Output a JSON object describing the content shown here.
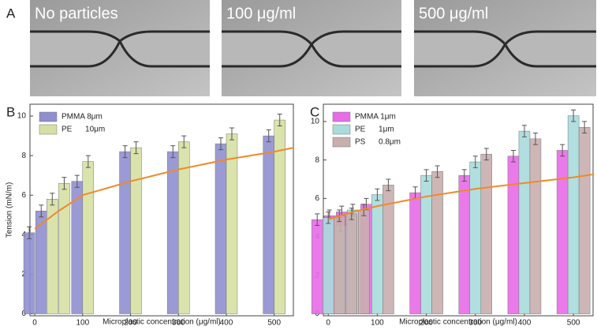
{
  "panel_labels": [
    "A",
    "B",
    "C"
  ],
  "images": [
    {
      "label": "No particles"
    },
    {
      "label": "100 μg/ml"
    },
    {
      "label": "500 μg/ml"
    }
  ],
  "chart_data": [
    {
      "type": "bar",
      "ylabel": "Tension (mN/m)",
      "xlabel": "Microplastic concentration (μg/ml)",
      "x": [
        0,
        25,
        50,
        100,
        200,
        300,
        400,
        500
      ],
      "series": [
        {
          "name": "PMMA 8μm",
          "color": "#8f8fd0",
          "values": [
            4.1,
            5.2,
            null,
            6.7,
            8.2,
            8.2,
            8.6,
            9.0
          ],
          "errors": [
            0.3,
            0.3,
            null,
            0.3,
            0.3,
            0.3,
            0.3,
            0.3
          ]
        },
        {
          "name": "PE      10μm",
          "color": "#d6e0a3",
          "values": [
            null,
            5.8,
            6.6,
            7.7,
            8.4,
            8.7,
            9.1,
            9.8
          ],
          "errors": [
            null,
            0.3,
            0.3,
            0.3,
            0.3,
            0.3,
            0.3,
            0.3
          ]
        }
      ],
      "fit": {
        "color": "#f0892a",
        "x": [
          0,
          50,
          100,
          200,
          300,
          400,
          500,
          540
        ],
        "values": [
          4.3,
          5.2,
          6.0,
          6.7,
          7.3,
          7.8,
          8.2,
          8.4
        ]
      },
      "xlim": [
        -10,
        540
      ],
      "ylim": [
        -0.1,
        10.6
      ],
      "xticks": [
        0,
        100,
        200,
        300,
        400,
        500
      ],
      "yticks": [
        0,
        2,
        4,
        6,
        8,
        10
      ]
    },
    {
      "type": "bar",
      "xlabel": "Microplastic concentration (μg/ml)",
      "x": [
        0,
        25,
        50,
        100,
        200,
        300,
        400,
        500
      ],
      "series": [
        {
          "name": "PMMA 1μm",
          "color": "#e86be8",
          "values": [
            4.9,
            5.1,
            5.3,
            5.7,
            6.3,
            7.2,
            8.2,
            8.5
          ],
          "errors": [
            0.3,
            0.3,
            0.3,
            0.3,
            0.3,
            0.3,
            0.3,
            0.3
          ]
        },
        {
          "name": "PE      1μm",
          "color": "#a9dcdc",
          "values": [
            5.0,
            4.6,
            5.4,
            6.2,
            7.2,
            7.9,
            9.5,
            10.3
          ],
          "errors": [
            0.3,
            0.3,
            0.3,
            0.3,
            0.3,
            0.3,
            0.3,
            0.3
          ]
        },
        {
          "name": "PS      0.8μm",
          "color": "#c9aeae",
          "values": [
            5.1,
            5.2,
            5.4,
            6.7,
            7.4,
            8.3,
            9.1,
            9.7
          ],
          "errors": [
            0.3,
            0.3,
            0.3,
            0.3,
            0.3,
            0.3,
            0.3,
            0.3
          ]
        }
      ],
      "fit": {
        "color": "#f0892a",
        "x": [
          0,
          50,
          100,
          200,
          300,
          400,
          500,
          540
        ],
        "values": [
          4.9,
          5.3,
          5.6,
          6.1,
          6.5,
          6.8,
          7.1,
          7.25
        ]
      },
      "xlim": [
        -10,
        540
      ],
      "ylim": [
        -0.1,
        10.9
      ],
      "xticks": [
        0,
        100,
        200,
        300,
        400,
        500
      ],
      "yticks": [
        0,
        2,
        4,
        6,
        8,
        10
      ]
    }
  ]
}
